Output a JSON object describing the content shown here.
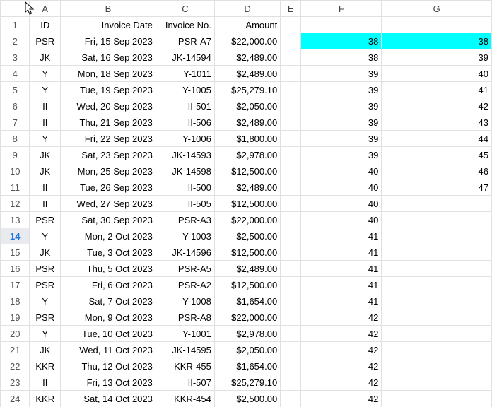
{
  "columns": [
    "A",
    "B",
    "C",
    "D",
    "E",
    "F",
    "G"
  ],
  "colWidths": {
    "A": 42,
    "B": 130,
    "C": 80,
    "D": 90,
    "E": 28,
    "F": 110,
    "G": 150
  },
  "headers": {
    "A": "ID",
    "B": "Invoice Date",
    "C": "Invoice No.",
    "D": "Amount"
  },
  "highlight": {
    "row": 2,
    "cols": [
      "F",
      "G"
    ],
    "bg": "#00ffff"
  },
  "activeRow": 14,
  "rows": [
    {
      "n": 1,
      "A": "ID",
      "B": "Invoice Date",
      "C": "Invoice No.",
      "D": "Amount",
      "F": "",
      "G": ""
    },
    {
      "n": 2,
      "A": "PSR",
      "B": "Fri, 15 Sep 2023",
      "C": "PSR-A7",
      "D": "$22,000.00",
      "F": "38",
      "G": "38"
    },
    {
      "n": 3,
      "A": "JK",
      "B": "Sat, 16 Sep 2023",
      "C": "JK-14594",
      "D": "$2,489.00",
      "F": "38",
      "G": "39"
    },
    {
      "n": 4,
      "A": "Y",
      "B": "Mon, 18 Sep 2023",
      "C": "Y-1011",
      "D": "$2,489.00",
      "F": "39",
      "G": "40"
    },
    {
      "n": 5,
      "A": "Y",
      "B": "Tue, 19 Sep 2023",
      "C": "Y-1005",
      "D": "$25,279.10",
      "F": "39",
      "G": "41"
    },
    {
      "n": 6,
      "A": "II",
      "B": "Wed, 20 Sep 2023",
      "C": "II-501",
      "D": "$2,050.00",
      "F": "39",
      "G": "42"
    },
    {
      "n": 7,
      "A": "II",
      "B": "Thu, 21 Sep 2023",
      "C": "II-506",
      "D": "$2,489.00",
      "F": "39",
      "G": "43"
    },
    {
      "n": 8,
      "A": "Y",
      "B": "Fri, 22 Sep 2023",
      "C": "Y-1006",
      "D": "$1,800.00",
      "F": "39",
      "G": "44"
    },
    {
      "n": 9,
      "A": "JK",
      "B": "Sat, 23 Sep 2023",
      "C": "JK-14593",
      "D": "$2,978.00",
      "F": "39",
      "G": "45"
    },
    {
      "n": 10,
      "A": "JK",
      "B": "Mon, 25 Sep 2023",
      "C": "JK-14598",
      "D": "$12,500.00",
      "F": "40",
      "G": "46"
    },
    {
      "n": 11,
      "A": "II",
      "B": "Tue, 26 Sep 2023",
      "C": "II-500",
      "D": "$2,489.00",
      "F": "40",
      "G": "47"
    },
    {
      "n": 12,
      "A": "II",
      "B": "Wed, 27 Sep 2023",
      "C": "II-505",
      "D": "$12,500.00",
      "F": "40",
      "G": ""
    },
    {
      "n": 13,
      "A": "PSR",
      "B": "Sat, 30 Sep 2023",
      "C": "PSR-A3",
      "D": "$22,000.00",
      "F": "40",
      "G": ""
    },
    {
      "n": 14,
      "A": "Y",
      "B": "Mon, 2 Oct 2023",
      "C": "Y-1003",
      "D": "$2,500.00",
      "F": "41",
      "G": ""
    },
    {
      "n": 15,
      "A": "JK",
      "B": "Tue, 3 Oct 2023",
      "C": "JK-14596",
      "D": "$12,500.00",
      "F": "41",
      "G": ""
    },
    {
      "n": 16,
      "A": "PSR",
      "B": "Thu, 5 Oct 2023",
      "C": "PSR-A5",
      "D": "$2,489.00",
      "F": "41",
      "G": ""
    },
    {
      "n": 17,
      "A": "PSR",
      "B": "Fri, 6 Oct 2023",
      "C": "PSR-A2",
      "D": "$12,500.00",
      "F": "41",
      "G": ""
    },
    {
      "n": 18,
      "A": "Y",
      "B": "Sat, 7 Oct 2023",
      "C": "Y-1008",
      "D": "$1,654.00",
      "F": "41",
      "G": ""
    },
    {
      "n": 19,
      "A": "PSR",
      "B": "Mon, 9 Oct 2023",
      "C": "PSR-A8",
      "D": "$22,000.00",
      "F": "42",
      "G": ""
    },
    {
      "n": 20,
      "A": "Y",
      "B": "Tue, 10 Oct 2023",
      "C": "Y-1001",
      "D": "$2,978.00",
      "F": "42",
      "G": ""
    },
    {
      "n": 21,
      "A": "JK",
      "B": "Wed, 11 Oct 2023",
      "C": "JK-14595",
      "D": "$2,050.00",
      "F": "42",
      "G": ""
    },
    {
      "n": 22,
      "A": "KKR",
      "B": "Thu, 12 Oct 2023",
      "C": "KKR-455",
      "D": "$1,654.00",
      "F": "42",
      "G": ""
    },
    {
      "n": 23,
      "A": "II",
      "B": "Fri, 13 Oct 2023",
      "C": "II-507",
      "D": "$25,279.10",
      "F": "42",
      "G": ""
    },
    {
      "n": 24,
      "A": "KKR",
      "B": "Sat, 14 Oct 2023",
      "C": "KKR-454",
      "D": "$2,500.00",
      "F": "42",
      "G": ""
    }
  ],
  "alignment": {
    "A": "center",
    "B": "right",
    "C": "right",
    "D": "right",
    "E": "left",
    "F": "right",
    "G": "right"
  },
  "headerAlign": {
    "A": "center",
    "B": "right",
    "C": "right",
    "D": "right"
  }
}
